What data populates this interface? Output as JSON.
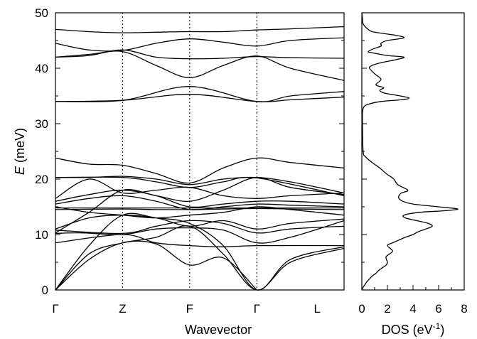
{
  "chart_data": [
    {
      "type": "line",
      "xlabel": "Wavevector",
      "ylabel_symbol": "E",
      "ylabel_unit": " (meV)",
      "ylim": [
        0,
        50
      ],
      "y_major_ticks": [
        0,
        10,
        20,
        30,
        40,
        50
      ],
      "y_minor_ticks": [
        5,
        15,
        25,
        35,
        45
      ],
      "x_points": [
        "Γ",
        "Z",
        "F",
        "Γ",
        "L"
      ],
      "x_positions": [
        0,
        1,
        2,
        3,
        3.9
      ],
      "xlim": [
        0,
        4.3
      ],
      "vertical_lines_at": [
        1,
        2,
        3
      ],
      "series": [
        {
          "x": [
            0,
            0.5,
            1,
            1.5,
            2,
            2.5,
            3
          ],
          "values": [
            0,
            5.5,
            8.5,
            8.3,
            4.5,
            5.8,
            0
          ]
        },
        {
          "x": [
            0,
            0.5,
            1,
            1.5,
            2,
            2.5,
            3,
            3.5,
            4.3
          ],
          "values": [
            0,
            6.5,
            8.5,
            9.5,
            11.5,
            6.5,
            0,
            5.0,
            7.5
          ]
        },
        {
          "x": [
            0,
            0.5,
            1,
            1.5,
            2,
            2.5,
            3,
            3.5,
            4.3
          ],
          "values": [
            0,
            8.0,
            13.5,
            13.0,
            12.0,
            8.0,
            0,
            5.5,
            7.8
          ]
        },
        {
          "x": [
            0,
            1,
            1.5,
            2,
            2.5,
            3,
            4.3
          ],
          "values": [
            8.5,
            10.0,
            8.5,
            8.0,
            7.8,
            8.0,
            8.0
          ]
        },
        {
          "x": [
            0,
            0.4,
            1,
            1.5,
            2,
            2.5,
            3,
            3.5,
            4.3
          ],
          "values": [
            10.2,
            10.3,
            10.0,
            11.0,
            11.2,
            10.8,
            8.5,
            9.5,
            12.5
          ]
        },
        {
          "x": [
            0,
            1,
            1.5,
            2,
            2.5,
            3,
            3.5,
            4.3
          ],
          "values": [
            10.8,
            10.2,
            11.5,
            12.5,
            12.0,
            10.3,
            11.0,
            11.5
          ]
        },
        {
          "x": [
            0,
            0.5,
            1,
            1.5,
            2,
            2.5,
            3,
            3.5,
            4.3
          ],
          "values": [
            11.0,
            13.0,
            13.5,
            13.0,
            11.5,
            12.5,
            11.0,
            12.0,
            12.8
          ]
        },
        {
          "x": [
            0,
            0.5,
            1,
            1.5,
            2,
            2.5,
            3,
            3.5,
            4.3
          ],
          "values": [
            15.0,
            14.0,
            13.5,
            13.0,
            13.5,
            14.0,
            15.0,
            14.5,
            13.5
          ]
        },
        {
          "x": [
            0,
            1,
            1.5,
            2,
            2.5,
            3,
            3.5,
            4.3
          ],
          "values": [
            14.5,
            14.6,
            14.5,
            14.5,
            14.6,
            14.7,
            14.6,
            14.5
          ]
        },
        {
          "x": [
            0,
            0.5,
            1,
            1.5,
            2,
            2.5,
            3,
            4.3
          ],
          "values": [
            14.8,
            14.8,
            14.8,
            14.8,
            14.8,
            14.8,
            14.8,
            14.8
          ]
        },
        {
          "x": [
            0,
            0.5,
            1,
            1.5,
            2,
            2.5,
            3,
            3.5,
            4.3
          ],
          "values": [
            15.5,
            16.5,
            17.0,
            16.0,
            14.5,
            15.0,
            15.5,
            15.3,
            15.0
          ]
        },
        {
          "x": [
            0,
            0.5,
            1,
            1.5,
            2,
            2.5,
            3,
            3.5,
            4.3
          ],
          "values": [
            16.0,
            17.2,
            18.0,
            17.0,
            15.0,
            15.5,
            16.0,
            16.0,
            15.5
          ]
        },
        {
          "x": [
            0,
            0.5,
            1,
            1.5,
            2,
            2.5,
            3,
            3.5,
            4.3
          ],
          "values": [
            16.5,
            20.0,
            17.5,
            18.0,
            18.5,
            17.0,
            16.5,
            17.0,
            17.5
          ]
        },
        {
          "x": [
            0,
            0.5,
            1,
            1.5,
            2,
            2.5,
            3,
            3.5,
            4.3
          ],
          "values": [
            10.3,
            14.0,
            18.0,
            17.0,
            16.0,
            18.0,
            20.3,
            18.5,
            17.2
          ]
        },
        {
          "x": [
            0,
            0.5,
            1,
            1.5,
            2,
            2.5,
            3,
            3.5,
            4.3
          ],
          "values": [
            20.3,
            20.3,
            20.5,
            20.0,
            19.0,
            20.0,
            20.3,
            19.5,
            17.5
          ]
        },
        {
          "x": [
            0,
            1,
            1.5,
            2,
            2.5,
            3,
            4.3
          ],
          "values": [
            20.3,
            20.3,
            19.5,
            18.5,
            19.5,
            20.2,
            17.0
          ]
        },
        {
          "x": [
            0,
            0.5,
            1,
            1.5,
            2,
            2.5,
            3,
            3.5,
            4.3
          ],
          "values": [
            23.8,
            22.7,
            22.5,
            21.0,
            19.3,
            22.0,
            23.8,
            23.0,
            22.0
          ]
        },
        {
          "x": [
            0,
            1,
            2,
            3,
            3.5,
            4.3
          ],
          "values": [
            34.0,
            34.2,
            35.3,
            34.0,
            34.3,
            34.8
          ]
        },
        {
          "x": [
            0,
            1,
            2,
            3,
            3.5,
            4.3
          ],
          "values": [
            34.0,
            34.2,
            36.7,
            34.0,
            35.0,
            35.8
          ]
        },
        {
          "x": [
            0,
            0.5,
            1,
            1.5,
            2,
            2.5,
            3,
            3.5,
            4.3
          ],
          "values": [
            42.0,
            42.5,
            43.0,
            40.5,
            38.3,
            40.5,
            42.2,
            40.0,
            37.8
          ]
        },
        {
          "x": [
            0,
            0.5,
            1,
            1.5,
            2,
            2.5,
            3,
            3.5,
            4.3
          ],
          "values": [
            42.0,
            42.3,
            43.3,
            42.0,
            41.7,
            41.8,
            42.1,
            41.9,
            41.8
          ]
        },
        {
          "x": [
            0,
            0.5,
            1,
            1.5,
            2,
            2.5,
            3,
            3.5,
            4.3
          ],
          "values": [
            44.5,
            43.3,
            43.2,
            44.5,
            45.3,
            44.7,
            44.0,
            45.0,
            45.5
          ]
        },
        {
          "x": [
            0,
            0.5,
            1,
            1.5,
            2,
            2.5,
            3,
            3.5,
            4.3
          ],
          "values": [
            47.0,
            46.6,
            46.4,
            46.5,
            46.6,
            46.6,
            46.9,
            47.1,
            47.5
          ]
        }
      ]
    },
    {
      "type": "line",
      "xlabel": "DOS (eV",
      "xlabel_sup": "-1",
      "xlabel_end": ")",
      "xlim": [
        0,
        8
      ],
      "x_major_ticks": [
        0,
        2,
        4,
        6,
        8
      ],
      "x_minor_ticks": [
        1,
        3,
        5,
        7
      ],
      "ylim": [
        0,
        50
      ],
      "series": [
        {
          "energy": [
            0,
            0.5,
            1,
            1.5,
            2,
            2.5,
            3,
            3.5,
            4,
            4.5,
            5,
            6,
            7,
            8,
            8.5,
            9,
            9.5,
            10,
            10.5,
            11,
            11.5,
            12,
            12.5,
            13,
            13.5,
            14,
            14.3,
            14.6,
            15,
            15.5,
            16,
            16.5,
            17,
            17.5,
            18,
            19,
            20,
            21,
            22,
            23,
            24,
            25,
            30,
            32,
            33,
            33.5,
            34,
            34.3,
            34.6,
            35,
            35.5,
            36,
            36.5,
            37,
            38,
            39,
            40,
            40.5,
            41,
            41.5,
            42,
            42.3,
            42.8,
            43,
            43.5,
            44,
            44.5,
            45,
            45.5,
            46,
            46.5,
            47,
            48,
            49,
            50
          ],
          "dos": [
            0,
            0.1,
            0.25,
            0.4,
            0.6,
            0.8,
            1.1,
            1.3,
            1.6,
            1.9,
            2.0,
            1.9,
            2.4,
            2.0,
            2.4,
            2.9,
            3.4,
            4.0,
            4.4,
            5.0,
            5.5,
            5.2,
            4.3,
            3.4,
            3.3,
            4.5,
            6.5,
            7.5,
            6.0,
            4.0,
            3.2,
            2.9,
            2.9,
            3.1,
            3.6,
            2.8,
            2.5,
            1.9,
            1.4,
            0.8,
            0.3,
            0.1,
            0.05,
            0.05,
            0.15,
            0.5,
            1.5,
            3.0,
            3.7,
            3.0,
            1.8,
            1.4,
            1.7,
            1.1,
            1.5,
            1.0,
            0.6,
            0.8,
            1.5,
            2.6,
            3.3,
            2.0,
            0.8,
            0.5,
            0.9,
            1.5,
            1.5,
            2.0,
            3.3,
            2.5,
            1.0,
            0.5,
            0.1,
            0.05,
            0
          ]
        }
      ]
    }
  ]
}
